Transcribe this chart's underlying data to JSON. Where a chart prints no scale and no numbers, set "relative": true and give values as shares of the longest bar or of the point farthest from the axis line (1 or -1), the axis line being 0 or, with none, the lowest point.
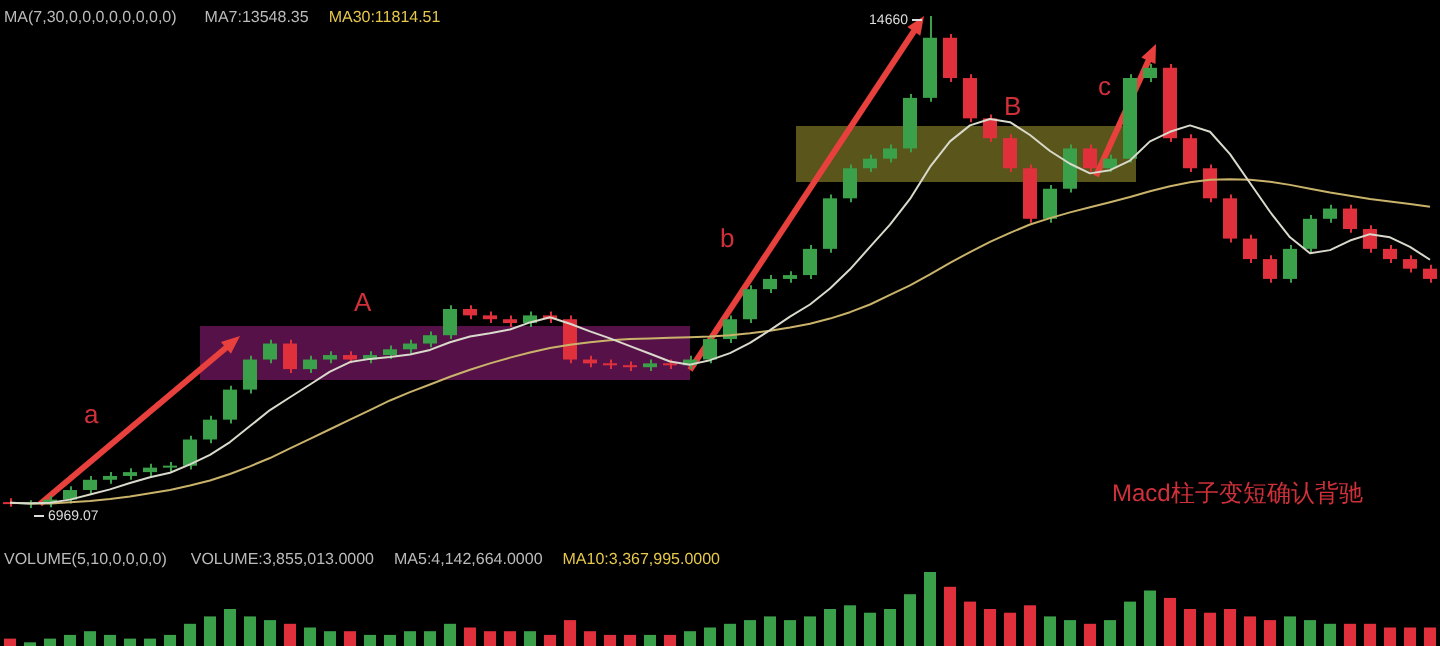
{
  "chart_data": [
    {
      "type": "candlestick",
      "categories": [
        null,
        null,
        null,
        null,
        null,
        null,
        null,
        null,
        null,
        null,
        null,
        null,
        null,
        null,
        null,
        null,
        null,
        null,
        null,
        null,
        null,
        null,
        null,
        null,
        null,
        null,
        null,
        null,
        null,
        null,
        null,
        null,
        null,
        null,
        null,
        null,
        null,
        null,
        null,
        null,
        null,
        null,
        null,
        null,
        null,
        null,
        null,
        null,
        null,
        null,
        null,
        null,
        null,
        null,
        null,
        null,
        null,
        null,
        null,
        null,
        null,
        null,
        null,
        null,
        null,
        null,
        null,
        null,
        null,
        null,
        null,
        null
      ],
      "ohlc": [
        [
          7060,
          7120,
          6990,
          7030
        ],
        [
          7030,
          7090,
          6969.07,
          7030
        ],
        [
          7030,
          7160,
          6980,
          7100
        ],
        [
          7100,
          7310,
          7040,
          7250
        ],
        [
          7250,
          7470,
          7190,
          7410
        ],
        [
          7410,
          7530,
          7350,
          7470
        ],
        [
          7470,
          7590,
          7410,
          7530
        ],
        [
          7530,
          7660,
          7470,
          7600
        ],
        [
          7600,
          7690,
          7540,
          7630
        ],
        [
          7630,
          8100,
          7570,
          8040
        ],
        [
          8040,
          8410,
          7980,
          8350
        ],
        [
          8350,
          8880,
          8290,
          8820
        ],
        [
          8820,
          9350,
          8760,
          9290
        ],
        [
          9290,
          9600,
          9230,
          9540
        ],
        [
          9540,
          9600,
          9080,
          9140
        ],
        [
          9140,
          9350,
          9080,
          9290
        ],
        [
          9290,
          9420,
          9230,
          9360
        ],
        [
          9360,
          9420,
          9230,
          9290
        ],
        [
          9290,
          9420,
          9230,
          9360
        ],
        [
          9360,
          9510,
          9300,
          9450
        ],
        [
          9450,
          9600,
          9390,
          9540
        ],
        [
          9540,
          9730,
          9480,
          9670
        ],
        [
          9670,
          10140,
          9610,
          10080
        ],
        [
          10080,
          10140,
          9920,
          9980
        ],
        [
          9980,
          10040,
          9860,
          9920
        ],
        [
          9920,
          9980,
          9800,
          9860
        ],
        [
          9860,
          10040,
          9800,
          9980
        ],
        [
          9980,
          10040,
          9860,
          9920
        ],
        [
          9920,
          9980,
          9230,
          9290
        ],
        [
          9290,
          9350,
          9170,
          9230
        ],
        [
          9230,
          9290,
          9140,
          9200
        ],
        [
          9200,
          9260,
          9110,
          9170
        ],
        [
          9170,
          9290,
          9110,
          9230
        ],
        [
          9230,
          9290,
          9140,
          9200
        ],
        [
          9200,
          9350,
          9140,
          9290
        ],
        [
          9290,
          9670,
          9230,
          9610
        ],
        [
          9610,
          9980,
          9550,
          9920
        ],
        [
          9920,
          10450,
          9860,
          10390
        ],
        [
          10390,
          10610,
          10330,
          10550
        ],
        [
          10550,
          10670,
          10490,
          10610
        ],
        [
          10610,
          11080,
          10550,
          11020
        ],
        [
          11020,
          11870,
          10960,
          11810
        ],
        [
          11810,
          12340,
          11750,
          12280
        ],
        [
          12280,
          12490,
          12220,
          12430
        ],
        [
          12430,
          12650,
          12370,
          12590
        ],
        [
          12590,
          13440,
          12530,
          13380
        ],
        [
          13380,
          14660,
          13320,
          14320
        ],
        [
          14320,
          14380,
          13630,
          13690
        ],
        [
          13690,
          13750,
          13000,
          13060
        ],
        [
          13060,
          13120,
          12690,
          12750
        ],
        [
          12750,
          12810,
          12220,
          12280
        ],
        [
          12280,
          12340,
          11430,
          11490
        ],
        [
          11490,
          12020,
          11430,
          11960
        ],
        [
          11960,
          12650,
          11900,
          12590
        ],
        [
          12590,
          12650,
          12220,
          12280
        ],
        [
          12280,
          12490,
          12220,
          12430
        ],
        [
          12430,
          13750,
          12370,
          13690
        ],
        [
          13690,
          13910,
          13630,
          13850
        ],
        [
          13850,
          13910,
          12690,
          12750
        ],
        [
          12750,
          12810,
          12220,
          12280
        ],
        [
          12280,
          12340,
          11750,
          11810
        ],
        [
          11810,
          11870,
          11120,
          11180
        ],
        [
          11180,
          11240,
          10800,
          10860
        ],
        [
          10860,
          10920,
          10490,
          10550
        ],
        [
          10550,
          11080,
          10490,
          11020
        ],
        [
          11020,
          11550,
          10960,
          11490
        ],
        [
          11490,
          11710,
          11430,
          11650
        ],
        [
          11650,
          11710,
          11270,
          11330
        ],
        [
          11330,
          11390,
          10960,
          11020
        ],
        [
          11020,
          11080,
          10800,
          10860
        ],
        [
          10860,
          10920,
          10650,
          10710
        ],
        [
          10710,
          10770,
          10490,
          10550
        ]
      ],
      "colors": [
        "#e0303c",
        "#3aa04a",
        "#3aa04a",
        "#3aa04a",
        "#3aa04a",
        "#3aa04a",
        "#3aa04a",
        "#3aa04a",
        "#3aa04a",
        "#3aa04a",
        "#3aa04a",
        "#3aa04a",
        "#3aa04a",
        "#3aa04a",
        "#e0303c",
        "#3aa04a",
        "#3aa04a",
        "#e0303c",
        "#3aa04a",
        "#3aa04a",
        "#3aa04a",
        "#3aa04a",
        "#3aa04a",
        "#e0303c",
        "#e0303c",
        "#e0303c",
        "#3aa04a",
        "#e0303c",
        "#e0303c",
        "#e0303c",
        "#e0303c",
        "#e0303c",
        "#3aa04a",
        "#e0303c",
        "#3aa04a",
        "#3aa04a",
        "#3aa04a",
        "#3aa04a",
        "#3aa04a",
        "#3aa04a",
        "#3aa04a",
        "#3aa04a",
        "#3aa04a",
        "#3aa04a",
        "#3aa04a",
        "#3aa04a",
        "#3aa04a",
        "#e0303c",
        "#e0303c",
        "#e0303c",
        "#e0303c",
        "#e0303c",
        "#3aa04a",
        "#3aa04a",
        "#e0303c",
        "#3aa04a",
        "#3aa04a",
        "#3aa04a",
        "#e0303c",
        "#e0303c",
        "#e0303c",
        "#e0303c",
        "#e0303c",
        "#e0303c",
        "#3aa04a",
        "#3aa04a",
        "#3aa04a",
        "#e0303c",
        "#e0303c",
        "#e0303c",
        "#e0303c",
        "#e0303c"
      ],
      "series": [
        {
          "type": "line",
          "color": "#d9d9cc",
          "values": [
            7050,
            7040,
            7050,
            7100,
            7180,
            7260,
            7360,
            7450,
            7520,
            7650,
            7800,
            8000,
            8250,
            8500,
            8700,
            8900,
            9100,
            9250,
            9300,
            9330,
            9370,
            9440,
            9560,
            9650,
            9700,
            9760,
            9870,
            9950,
            9850,
            9730,
            9620,
            9500,
            9380,
            9260,
            9210,
            9280,
            9390,
            9550,
            9750,
            9960,
            10150,
            10400,
            10700,
            11050,
            11400,
            11800,
            12300,
            12700,
            12950,
            13050,
            13000,
            12800,
            12550,
            12350,
            12200,
            12250,
            12400,
            12700,
            12850,
            12950,
            12850,
            12500,
            12050,
            11600,
            11200,
            10950,
            11000,
            11150,
            11250,
            11200,
            11050,
            10850
          ]
        },
        {
          "type": "line",
          "color": "#c9b36a",
          "values": [
            7050,
            7040,
            7040,
            7060,
            7080,
            7110,
            7150,
            7200,
            7250,
            7320,
            7400,
            7500,
            7620,
            7750,
            7900,
            8050,
            8200,
            8350,
            8500,
            8650,
            8780,
            8900,
            9020,
            9130,
            9230,
            9320,
            9400,
            9470,
            9520,
            9560,
            9590,
            9610,
            9620,
            9630,
            9640,
            9650,
            9670,
            9700,
            9740,
            9790,
            9850,
            9930,
            10030,
            10150,
            10300,
            10450,
            10620,
            10800,
            10970,
            11130,
            11270,
            11400,
            11500,
            11590,
            11670,
            11750,
            11830,
            11920,
            12000,
            12060,
            12100,
            12110,
            12100,
            12070,
            12020,
            11960,
            11900,
            11850,
            11800,
            11760,
            11720,
            11680
          ]
        }
      ],
      "annotations": [
        "MA(7,30,0,0,0,0,0,0,0,0)",
        "MA7:13548.35",
        "MA30:11814.51",
        "a",
        "A",
        "b",
        "B",
        "c",
        "Macd柱子变短确认背驰",
        "14660",
        "6969.07"
      ]
    },
    {
      "type": "bar",
      "relative": true,
      "categories": [
        null,
        null,
        null,
        null,
        null,
        null,
        null,
        null,
        null,
        null,
        null,
        null,
        null,
        null,
        null,
        null,
        null,
        null,
        null,
        null,
        null,
        null,
        null,
        null,
        null,
        null,
        null,
        null,
        null,
        null,
        null,
        null,
        null,
        null,
        null,
        null,
        null,
        null,
        null,
        null,
        null,
        null,
        null,
        null,
        null,
        null,
        null,
        null,
        null,
        null,
        null,
        null,
        null,
        null,
        null,
        null,
        null,
        null,
        null,
        null,
        null,
        null,
        null,
        null,
        null,
        null,
        null,
        null,
        null,
        null,
        null,
        null
      ],
      "values": [
        0.1,
        0.05,
        0.1,
        0.15,
        0.2,
        0.15,
        0.1,
        0.1,
        0.15,
        0.3,
        0.4,
        0.5,
        0.4,
        0.35,
        0.3,
        0.25,
        0.2,
        0.2,
        0.15,
        0.15,
        0.2,
        0.2,
        0.3,
        0.25,
        0.2,
        0.2,
        0.2,
        0.15,
        0.35,
        0.2,
        0.15,
        0.15,
        0.15,
        0.15,
        0.2,
        0.25,
        0.3,
        0.35,
        0.4,
        0.35,
        0.4,
        0.5,
        0.55,
        0.45,
        0.5,
        0.7,
        1,
        0.8,
        0.6,
        0.5,
        0.45,
        0.55,
        0.4,
        0.35,
        0.3,
        0.35,
        0.6,
        0.75,
        0.65,
        0.5,
        0.45,
        0.5,
        0.4,
        0.35,
        0.4,
        0.35,
        0.3,
        0.3,
        0.3,
        0.25,
        0.25,
        0.25
      ],
      "colors": [
        "#e0303c",
        "#3aa04a",
        "#3aa04a",
        "#3aa04a",
        "#3aa04a",
        "#3aa04a",
        "#3aa04a",
        "#3aa04a",
        "#3aa04a",
        "#3aa04a",
        "#3aa04a",
        "#3aa04a",
        "#3aa04a",
        "#3aa04a",
        "#e0303c",
        "#3aa04a",
        "#3aa04a",
        "#e0303c",
        "#3aa04a",
        "#3aa04a",
        "#3aa04a",
        "#3aa04a",
        "#3aa04a",
        "#e0303c",
        "#e0303c",
        "#e0303c",
        "#3aa04a",
        "#e0303c",
        "#e0303c",
        "#e0303c",
        "#e0303c",
        "#e0303c",
        "#3aa04a",
        "#e0303c",
        "#3aa04a",
        "#3aa04a",
        "#3aa04a",
        "#3aa04a",
        "#3aa04a",
        "#3aa04a",
        "#3aa04a",
        "#3aa04a",
        "#3aa04a",
        "#3aa04a",
        "#3aa04a",
        "#3aa04a",
        "#3aa04a",
        "#e0303c",
        "#e0303c",
        "#e0303c",
        "#e0303c",
        "#e0303c",
        "#3aa04a",
        "#3aa04a",
        "#e0303c",
        "#3aa04a",
        "#3aa04a",
        "#3aa04a",
        "#e0303c",
        "#e0303c",
        "#e0303c",
        "#e0303c",
        "#e0303c",
        "#e0303c",
        "#3aa04a",
        "#3aa04a",
        "#3aa04a",
        "#e0303c",
        "#e0303c",
        "#e0303c",
        "#e0303c",
        "#e0303c"
      ],
      "annotations": [
        "VOLUME(5,10,0,0,0,0)",
        "VOLUME:3,855,013.0000",
        "MA5:4,142,664.0000",
        "MA10:3,367,995.0000"
      ]
    }
  ]
}
